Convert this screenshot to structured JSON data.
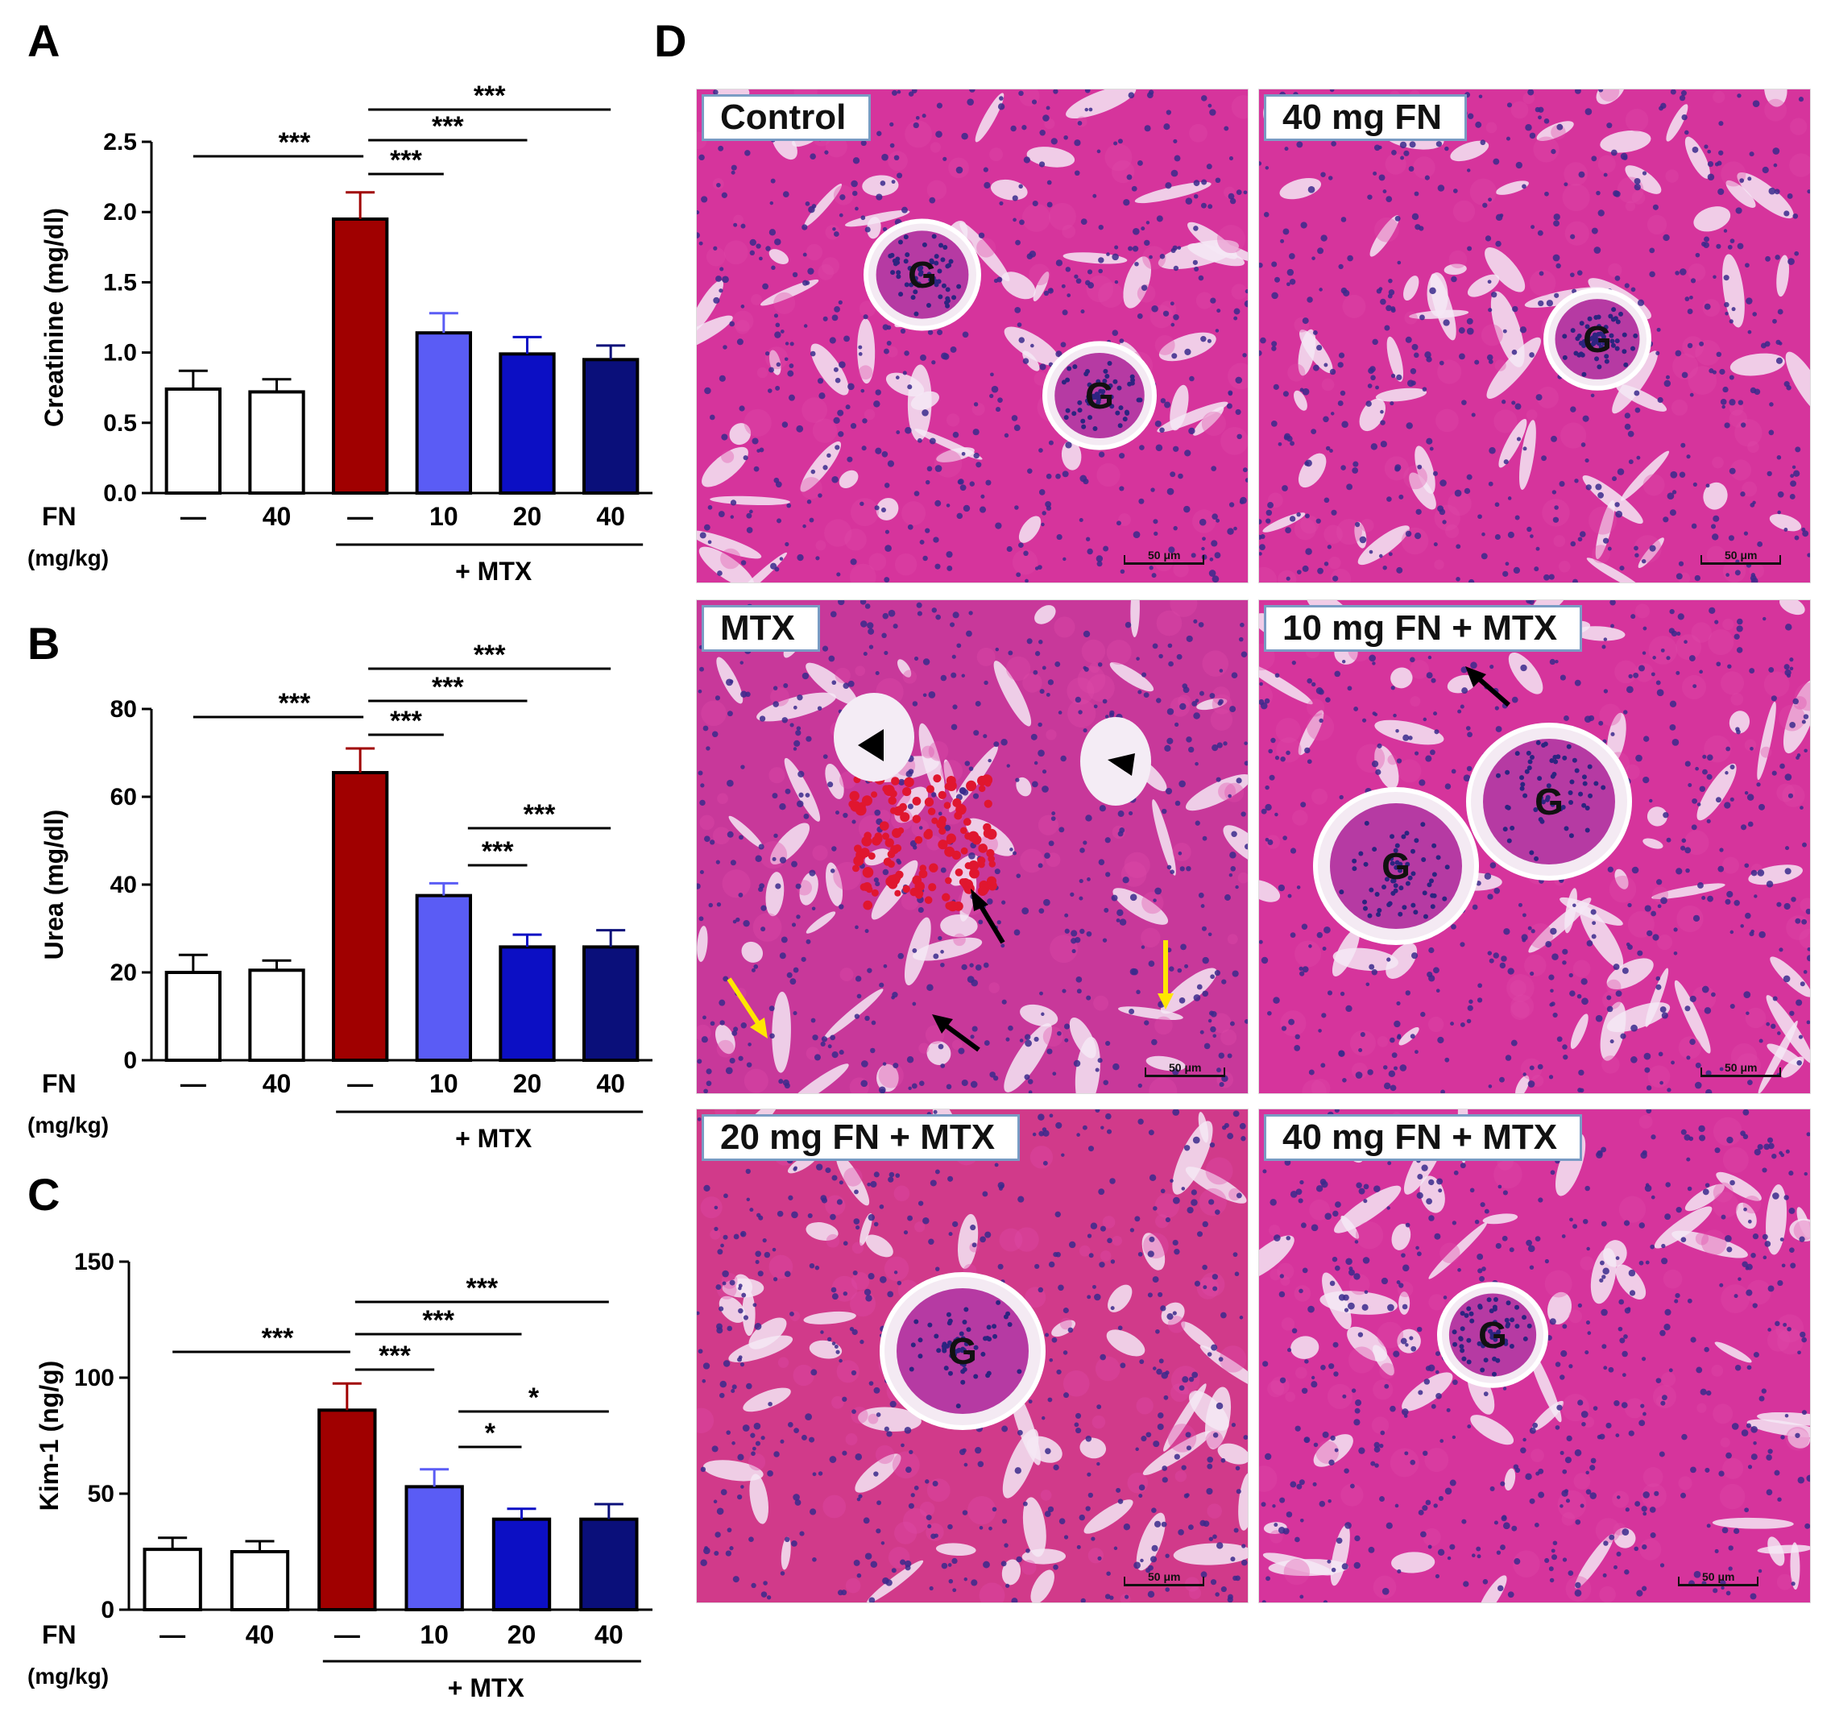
{
  "panel_letters": [
    "A",
    "B",
    "C",
    "D"
  ],
  "colors": {
    "control": "#ffffff",
    "fn40": "#ffffff",
    "mtx": "#a00000",
    "fn10_mtx": "#5a5cf5",
    "fn20_mtx": "#0c0fc4",
    "fn40_mtx": "#0a0f7a",
    "axis": "#000000",
    "tissue_base": "#d6349c",
    "tissue_nuclei": "#3a2a8c",
    "arrow_black": "#000000",
    "arrow_yellow": "#ffe600"
  },
  "x_axis_rows": {
    "fn_label": "FN",
    "unit_label": "(mg/kg)",
    "doses": [
      "—",
      "40",
      "—",
      "10",
      "20",
      "40"
    ],
    "mtx_label": "+ MTX"
  },
  "chart_data": [
    {
      "type": "bar",
      "panel": "A",
      "ylabel": "Creatinine (mg/dl)",
      "ylim": [
        0,
        2.5
      ],
      "yticks": [
        "0.0",
        "0.5",
        "1.0",
        "1.5",
        "2.0",
        "2.5"
      ],
      "yticks_values": [
        0,
        0.5,
        1.0,
        1.5,
        2.0,
        2.5
      ],
      "categories": [
        "Control",
        "40 mg FN",
        "MTX",
        "10 mg FN + MTX",
        "20 mg FN + MTX",
        "40 mg FN + MTX"
      ],
      "values": [
        0.74,
        0.72,
        1.95,
        1.14,
        0.99,
        0.95
      ],
      "errors": [
        0.13,
        0.09,
        0.19,
        0.14,
        0.12,
        0.1
      ],
      "significance": [
        {
          "from": 0,
          "to": 2,
          "label": "***"
        },
        {
          "from": 2,
          "to": 3,
          "label": "***"
        },
        {
          "from": 2,
          "to": 4,
          "label": "***"
        },
        {
          "from": 2,
          "to": 5,
          "label": "***"
        }
      ]
    },
    {
      "type": "bar",
      "panel": "B",
      "ylabel": "Urea (mg/dl)",
      "ylim": [
        0,
        80
      ],
      "yticks": [
        "0",
        "20",
        "40",
        "60",
        "80"
      ],
      "yticks_values": [
        0,
        20,
        40,
        60,
        80
      ],
      "categories": [
        "Control",
        "40 mg FN",
        "MTX",
        "10 mg FN + MTX",
        "20 mg FN + MTX",
        "40 mg FN + MTX"
      ],
      "values": [
        20,
        20.5,
        65.5,
        37.5,
        25.8,
        25.8
      ],
      "errors": [
        4,
        2.2,
        5.5,
        2.8,
        2.8,
        3.8
      ],
      "significance": [
        {
          "from": 0,
          "to": 2,
          "label": "***"
        },
        {
          "from": 2,
          "to": 3,
          "label": "***"
        },
        {
          "from": 2,
          "to": 4,
          "label": "***"
        },
        {
          "from": 2,
          "to": 5,
          "label": "***"
        },
        {
          "from": 3,
          "to": 4,
          "label": "***"
        },
        {
          "from": 3,
          "to": 5,
          "label": "***"
        }
      ]
    },
    {
      "type": "bar",
      "panel": "C",
      "ylabel": "Kim-1 (ng/g)",
      "ylim": [
        0,
        150
      ],
      "yticks": [
        "0",
        "50",
        "100",
        "150"
      ],
      "yticks_values": [
        0,
        50,
        100,
        150
      ],
      "categories": [
        "Control",
        "40 mg FN",
        "MTX",
        "10 mg FN + MTX",
        "20 mg FN + MTX",
        "40 mg FN + MTX"
      ],
      "values": [
        26,
        25,
        86,
        53,
        39,
        39
      ],
      "errors": [
        5,
        4.5,
        11.5,
        7.5,
        4.5,
        6.5
      ],
      "significance": [
        {
          "from": 0,
          "to": 2,
          "label": "***"
        },
        {
          "from": 2,
          "to": 3,
          "label": "***"
        },
        {
          "from": 2,
          "to": 4,
          "label": "***"
        },
        {
          "from": 2,
          "to": 5,
          "label": "***"
        },
        {
          "from": 3,
          "to": 4,
          "label": "*"
        },
        {
          "from": 3,
          "to": 5,
          "label": "*"
        }
      ]
    }
  ],
  "histology": {
    "panels": [
      {
        "label": "Control",
        "glomeruli": [
          "G",
          "G"
        ]
      },
      {
        "label": "40 mg FN",
        "glomeruli": [
          "G"
        ]
      },
      {
        "label": "MTX",
        "glomeruli": []
      },
      {
        "label": "10 mg FN + MTX",
        "glomeruli": [
          "G",
          "G"
        ]
      },
      {
        "label": "20 mg FN + MTX",
        "glomeruli": [
          "G"
        ]
      },
      {
        "label": "40 mg FN + MTX",
        "glomeruli": [
          "G"
        ]
      }
    ],
    "scale_bar_label": "50 μm"
  }
}
